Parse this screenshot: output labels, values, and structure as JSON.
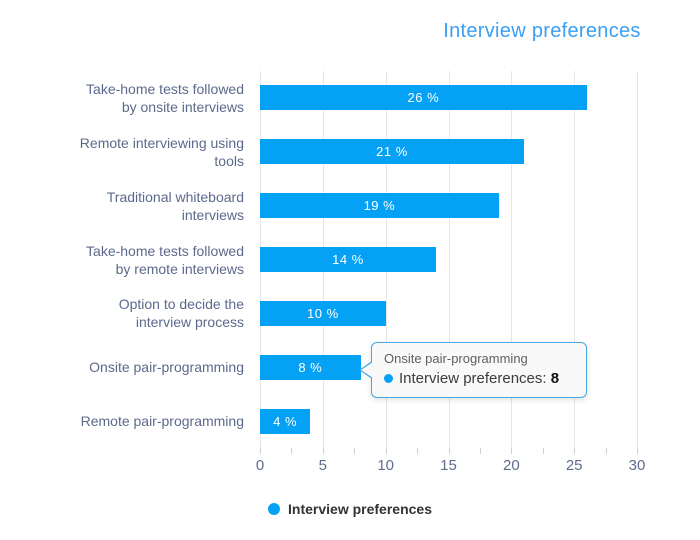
{
  "title": "Interview preferences",
  "colors": {
    "bar": "#05a1f5",
    "title_text": "#3b9ff2",
    "category_label": "#5c698c",
    "axis_label": "#5f6c8e",
    "grid": "#e6e6e6",
    "tick": "#ccd2dc",
    "legend_text": "#333333",
    "tooltip_border": "#45a7e3",
    "tooltip_bg": "#f9f9f9"
  },
  "chart_data": {
    "type": "bar",
    "orientation": "horizontal",
    "title": "Interview preferences",
    "categories": [
      "Take-home tests followed by onsite interviews",
      "Remote interviewing using tools",
      "Traditional whiteboard interviews",
      "Take-home tests followed by remote interviews",
      "Option to decide the interview process",
      "Onsite pair-programming",
      "Remote pair-programming"
    ],
    "category_lines": [
      [
        "Take-home tests followed",
        "by onsite interviews"
      ],
      [
        "Remote interviewing using",
        "tools"
      ],
      [
        "Traditional whiteboard",
        "interviews"
      ],
      [
        "Take-home tests followed",
        "by remote interviews"
      ],
      [
        "Option to decide the",
        "interview process"
      ],
      [
        "Onsite pair-programming"
      ],
      [
        "Remote pair-programming"
      ]
    ],
    "series": [
      {
        "name": "Interview preferences",
        "values": [
          26,
          21,
          19,
          14,
          10,
          8,
          4
        ]
      }
    ],
    "bar_labels": [
      "26 %",
      "21 %",
      "19 %",
      "14 %",
      "10 %",
      "8 %",
      "4 %"
    ],
    "xlim": [
      0,
      30
    ],
    "x_ticks": [
      0,
      5,
      10,
      15,
      20,
      25,
      30
    ],
    "x_tick_labels": [
      "0",
      "5",
      "10",
      "15",
      "20",
      "25",
      "30"
    ],
    "minor_tick_step": 2.5,
    "grid": "vertical",
    "legend_position": "bottom"
  },
  "legend": {
    "label": "Interview preferences"
  },
  "tooltip": {
    "category": "Onsite pair-programming",
    "series_label": "Interview preferences: ",
    "value": "8"
  }
}
